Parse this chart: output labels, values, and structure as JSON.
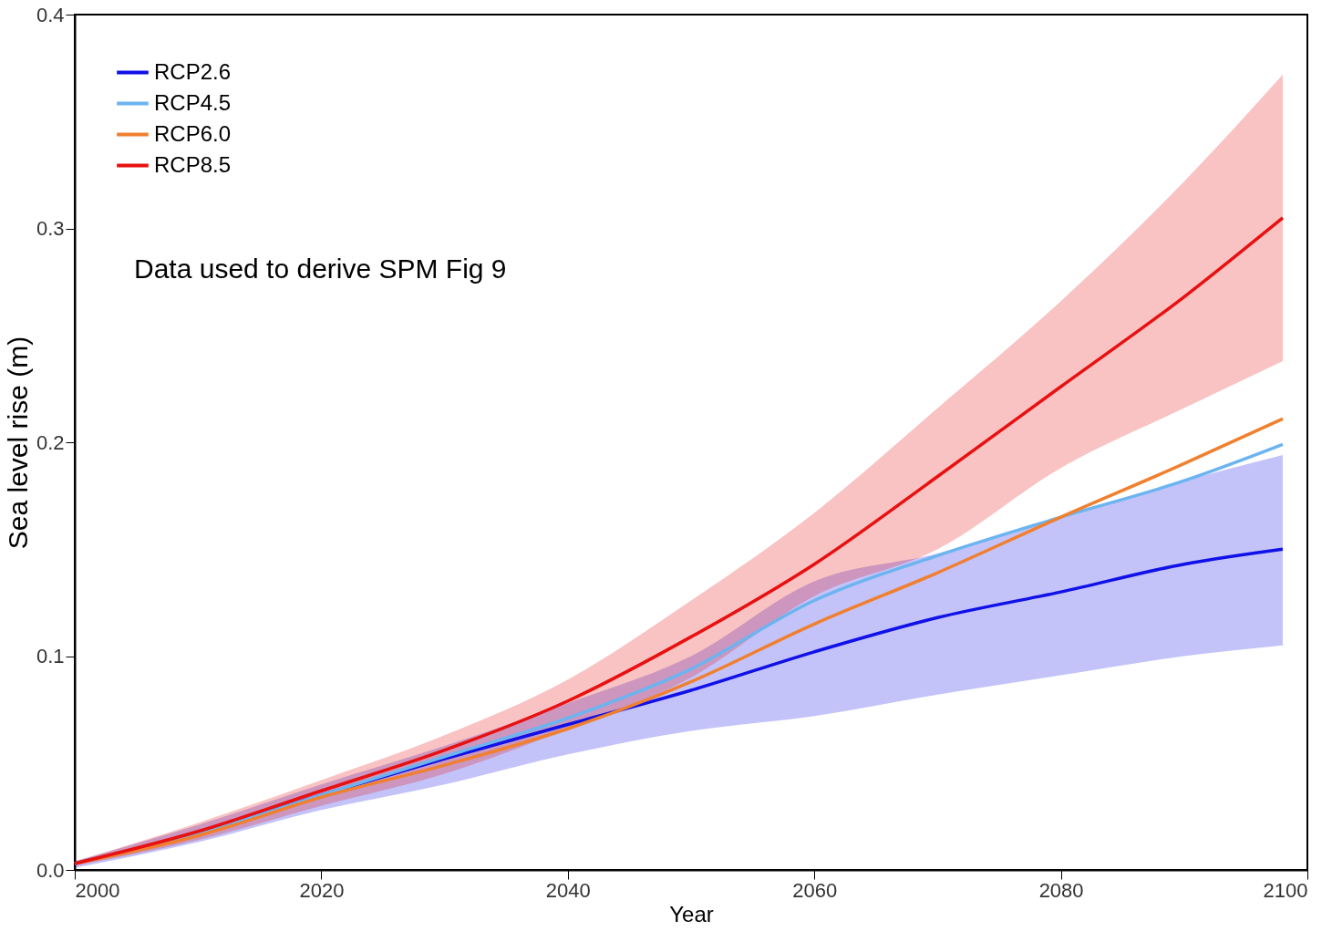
{
  "chart_data": {
    "type": "line",
    "xlabel": "Year",
    "ylabel": "Sea level rise (m)",
    "annotations": [
      "Data used to derive SPM Fig 9"
    ],
    "x": [
      2000,
      2010,
      2020,
      2030,
      2040,
      2050,
      2060,
      2070,
      2080,
      2090,
      2098
    ],
    "series": [
      {
        "name": "RCP2.6",
        "color": "#1010e8",
        "values": [
          0.003,
          0.017,
          0.035,
          0.052,
          0.068,
          0.084,
          0.102,
          0.118,
          0.13,
          0.143,
          0.15
        ],
        "lower": [
          0.001,
          0.013,
          0.028,
          0.04,
          0.054,
          0.065,
          0.072,
          0.082,
          0.091,
          0.1,
          0.105
        ],
        "upper": [
          0.004,
          0.021,
          0.04,
          0.058,
          0.078,
          0.1,
          0.135,
          0.148,
          0.165,
          0.182,
          0.194
        ]
      },
      {
        "name": "RCP4.5",
        "color": "#6cb4f0",
        "values": [
          0.003,
          0.017,
          0.035,
          0.053,
          0.071,
          0.094,
          0.126,
          0.147,
          0.165,
          0.182,
          0.199
        ]
      },
      {
        "name": "RCP6.0",
        "color": "#f08030",
        "values": [
          0.003,
          0.016,
          0.034,
          0.049,
          0.066,
          0.088,
          0.115,
          0.139,
          0.165,
          0.19,
          0.211
        ]
      },
      {
        "name": "RCP8.5",
        "color": "#e81010",
        "values": [
          0.003,
          0.018,
          0.037,
          0.056,
          0.079,
          0.109,
          0.143,
          0.184,
          0.226,
          0.268,
          0.305
        ],
        "lower": [
          0.002,
          0.014,
          0.03,
          0.045,
          0.066,
          0.09,
          0.128,
          0.15,
          0.188,
          0.216,
          0.238
        ],
        "upper": [
          0.004,
          0.022,
          0.042,
          0.063,
          0.089,
          0.126,
          0.167,
          0.216,
          0.266,
          0.322,
          0.372
        ]
      }
    ],
    "xlim": [
      2000,
      2100
    ],
    "xticks": [
      2000,
      2020,
      2040,
      2060,
      2080,
      2100
    ],
    "ylim": [
      0,
      0.4
    ],
    "yticks": [
      {
        "value": 0,
        "label": "0.0"
      },
      0.1,
      0.2,
      0.3,
      0.4
    ],
    "grid": false,
    "legend": "top left",
    "line_style": "solid",
    "marker": "none"
  }
}
